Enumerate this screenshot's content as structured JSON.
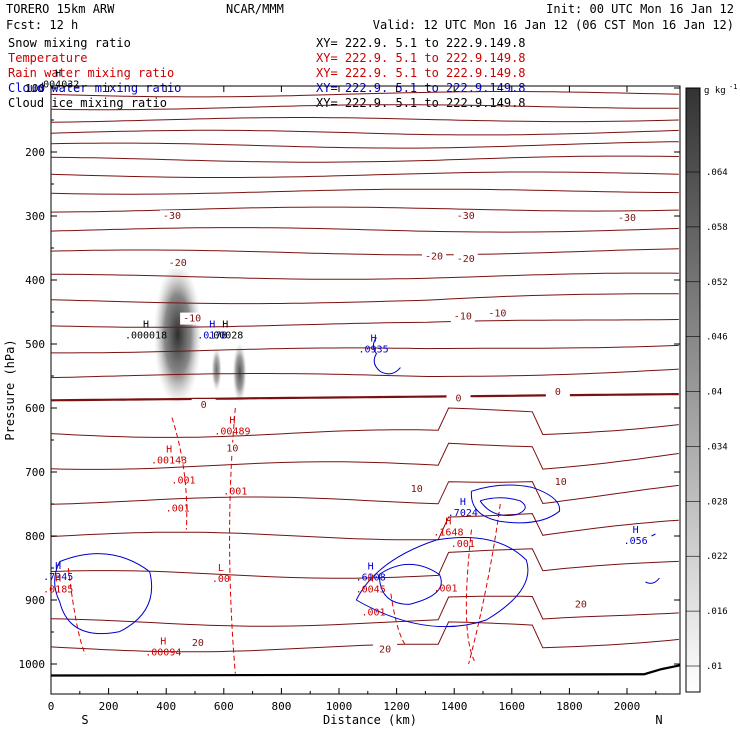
{
  "header": {
    "model": "TORERO  15km ARW",
    "center": "NCAR/MMM",
    "init": "Init: 00 UTC Mon 16 Jan 12",
    "fcst": "Fcst:   12 h",
    "valid": "Valid: 12 UTC Mon 16 Jan 12 (06 CST Mon 16 Jan 12)"
  },
  "legend": [
    {
      "name": "Snow mixing ratio",
      "xy": "XY= 222.9.  5.1 to 222.9.149.8",
      "color": "#000000"
    },
    {
      "name": "Temperature",
      "xy": "XY= 222.9.  5.1 to 222.9.149.8",
      "color": "#cc0000"
    },
    {
      "name": "Rain water mixing ratio",
      "xy": "XY= 222.9.  5.1 to 222.9.149.8",
      "color": "#cc0000"
    },
    {
      "name": "Cloud water mixing ratio",
      "xy": "XY= 222.9.  5.1 to 222.9.149.8",
      "color": "#0000cc"
    },
    {
      "name": "Cloud ice mixing ratio",
      "xy": "XY= 222.9.  5.1 to 222.9.149.8",
      "color": "#000000"
    }
  ],
  "chart_data": {
    "type": "cross-section",
    "xlabel": "Distance (km)",
    "ylabel": "Pressure (hPa)",
    "xlim": [
      0,
      2180
    ],
    "ylim": [
      1050,
      100
    ],
    "x_ticks": [
      0,
      200,
      400,
      600,
      800,
      1000,
      1200,
      1400,
      1600,
      1800,
      2000
    ],
    "y_ticks": [
      100,
      200,
      300,
      400,
      500,
      600,
      700,
      800,
      900,
      1000
    ],
    "x_end_labels": {
      "left": "S",
      "right": "N"
    },
    "colorbar": {
      "unit": "g kg",
      "unit_exp": "-1",
      "ticks": [
        ".01",
        ".016",
        ".022",
        ".028",
        ".034",
        ".04",
        ".046",
        ".052",
        ".058",
        ".064"
      ]
    },
    "temperature_labels": [
      {
        "text": "-30",
        "x": 420,
        "p": 305
      },
      {
        "text": "-30",
        "x": 1440,
        "p": 305
      },
      {
        "text": "-30",
        "x": 2000,
        "p": 308
      },
      {
        "text": "-20",
        "x": 440,
        "p": 378
      },
      {
        "text": "-20",
        "x": 1330,
        "p": 368
      },
      {
        "text": "-20",
        "x": 1440,
        "p": 372
      },
      {
        "text": "-10",
        "x": 490,
        "p": 465
      },
      {
        "text": "-10",
        "x": 1430,
        "p": 462
      },
      {
        "text": "-10",
        "x": 1550,
        "p": 457
      },
      {
        "text": "0",
        "x": 530,
        "p": 600
      },
      {
        "text": "0",
        "x": 1415,
        "p": 590
      },
      {
        "text": "0",
        "x": 1760,
        "p": 580
      },
      {
        "text": "10",
        "x": 630,
        "p": 668
      },
      {
        "text": "10",
        "x": 1270,
        "p": 731
      },
      {
        "text": "10",
        "x": 1770,
        "p": 720
      },
      {
        "text": "20",
        "x": 510,
        "p": 972
      },
      {
        "text": "20",
        "x": 1840,
        "p": 912
      },
      {
        "text": "20",
        "x": 1160,
        "p": 982
      }
    ],
    "extrema_labels": [
      {
        "mark": "H",
        "value": ".000018",
        "x": 330,
        "p": 490,
        "color": "#000000"
      },
      {
        "mark": "H",
        "value": ".0178",
        "x": 560,
        "p": 490,
        "color": "#0000cc"
      },
      {
        "mark": "H",
        "value": ".00028",
        "x": 605,
        "p": 490,
        "color": "#000000"
      },
      {
        "mark": "H",
        "value": ".0935",
        "x": 1120,
        "p": 512,
        "color": "#0000cc"
      },
      {
        "mark": "H",
        "value": ".004032",
        "x": 25,
        "p": 98,
        "color": "#000000"
      },
      {
        "mark": "H",
        "value": ".00489",
        "x": 630,
        "p": 640,
        "color": "#cc0000"
      },
      {
        "mark": "H",
        "value": ".00143",
        "x": 410,
        "p": 685,
        "color": "#cc0000"
      },
      {
        "mark": "H",
        "value": ".7024",
        "x": 1430,
        "p": 767,
        "color": "#0000cc"
      },
      {
        "mark": "H",
        "value": ".1648",
        "x": 1380,
        "p": 798,
        "color": "#cc0000"
      },
      {
        "mark": "H",
        "value": ".056",
        "x": 2030,
        "p": 811,
        "color": "#0000cc"
      },
      {
        "mark": "H",
        "value": ".7345",
        "x": 25,
        "p": 867,
        "color": "#0000cc"
      },
      {
        "mark": "H",
        "value": ".0185",
        "x": 25,
        "p": 887,
        "color": "#cc0000"
      },
      {
        "mark": "L",
        "value": ".00",
        "x": 590,
        "p": 870,
        "color": "#cc0000"
      },
      {
        "mark": "H",
        "value": ".6108",
        "x": 1110,
        "p": 868,
        "color": "#0000cc"
      },
      {
        "mark": "H",
        "value": ".0045",
        "x": 1110,
        "p": 887,
        "color": "#cc0000"
      },
      {
        "mark": "H",
        "value": ".00094",
        "x": 390,
        "p": 985,
        "color": "#cc0000"
      }
    ],
    "rain_value_labels": [
      {
        "text": ".001",
        "x": 460,
        "p": 718
      },
      {
        "text": ".001",
        "x": 640,
        "p": 735
      },
      {
        "text": ".001",
        "x": 440,
        "p": 762
      },
      {
        "text": ".001",
        "x": 1370,
        "p": 887
      },
      {
        "text": ".001",
        "x": 1120,
        "p": 924
      },
      {
        "text": ".001",
        "x": 1430,
        "p": 817
      }
    ]
  }
}
